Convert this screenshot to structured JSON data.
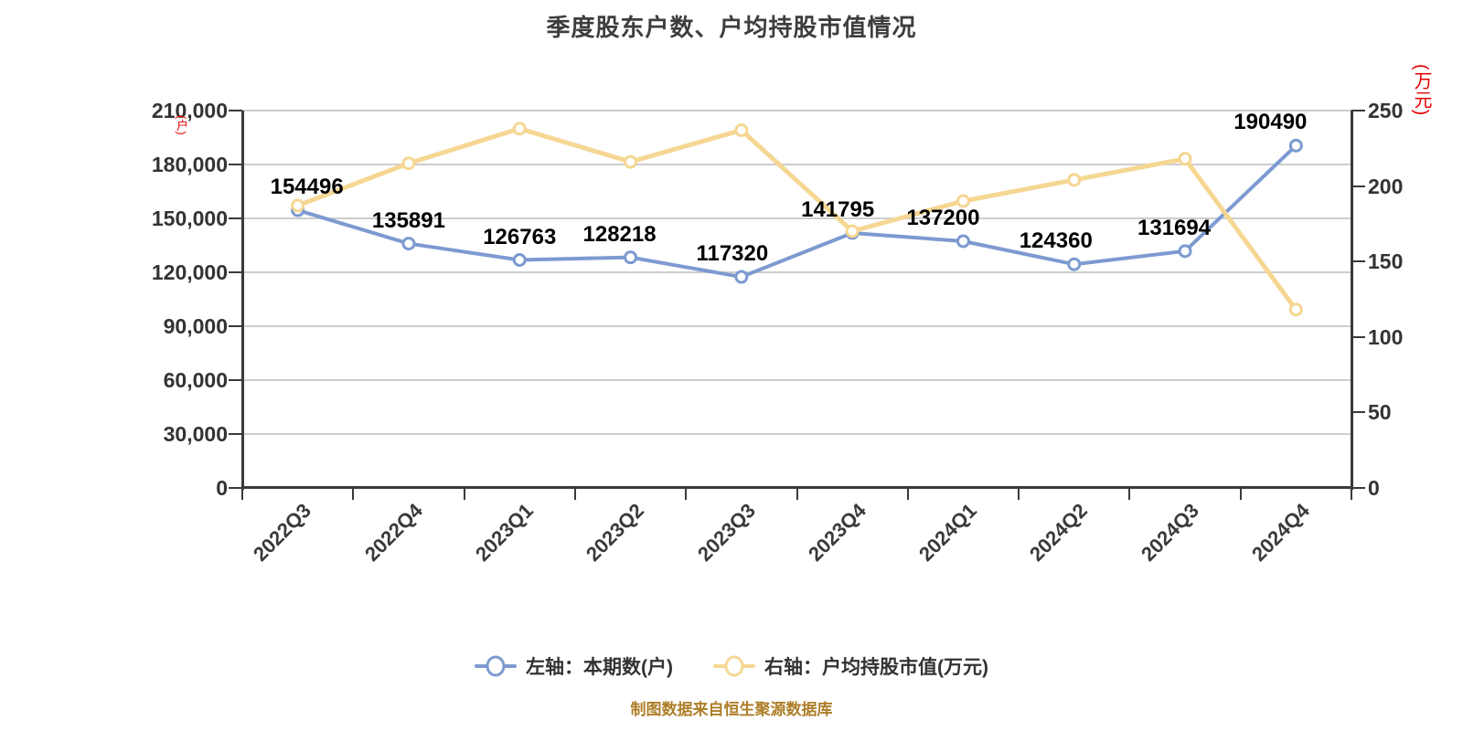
{
  "page": {
    "title": "季度股东户数、户均持股市值情况",
    "footer": "制图数据来自恒生聚源数据库"
  },
  "colors": {
    "title": "#3D3D3D",
    "axis_label": "#333333",
    "axis_line": "#3A3A3A",
    "grid": "#CDCDCD",
    "axis_name_red": "#E60000",
    "series_blue": "#7D9AD0",
    "series_yellow": "#F5D793",
    "marker_fill": "#FFFFFF",
    "data_label": "#000000",
    "footer": "#AD7E28"
  },
  "chart_data": {
    "type": "line",
    "title": "季度股东户数、户均持股市值情况",
    "categories": [
      "2022Q3",
      "2022Q4",
      "2023Q1",
      "2023Q2",
      "2023Q3",
      "2023Q4",
      "2024Q1",
      "2024Q2",
      "2024Q3",
      "2024Q4"
    ],
    "series": [
      {
        "name": "左轴：本期数(户)",
        "yaxis": "left",
        "color": "#7D9AD0",
        "values": [
          154496,
          135891,
          126763,
          128218,
          117320,
          141795,
          137200,
          124360,
          131694,
          190490
        ],
        "show_labels": true
      },
      {
        "name": "右轴：户均持股市值(万元)",
        "yaxis": "right",
        "color": "#F5D793",
        "values": [
          187,
          215,
          238,
          216,
          237,
          170,
          190,
          204,
          218,
          118
        ],
        "show_labels": false
      }
    ],
    "left_axis": {
      "name": "(户)",
      "min": 0,
      "max": 210000,
      "step": 30000,
      "tick_labels": [
        "0",
        "30,000",
        "60,000",
        "90,000",
        "120,000",
        "150,000",
        "180,000",
        "210,000"
      ]
    },
    "right_axis": {
      "name": "(万元)",
      "min": 0,
      "max": 250,
      "step": 50,
      "tick_labels": [
        "0",
        "50",
        "100",
        "150",
        "200",
        "250"
      ]
    },
    "grid": true,
    "legend_position": "bottom"
  },
  "legend": {
    "items": [
      {
        "label": "左轴：本期数(户)",
        "color": "#7D9AD0"
      },
      {
        "label": "右轴：户均持股市值(万元)",
        "color": "#F5D793"
      }
    ]
  }
}
